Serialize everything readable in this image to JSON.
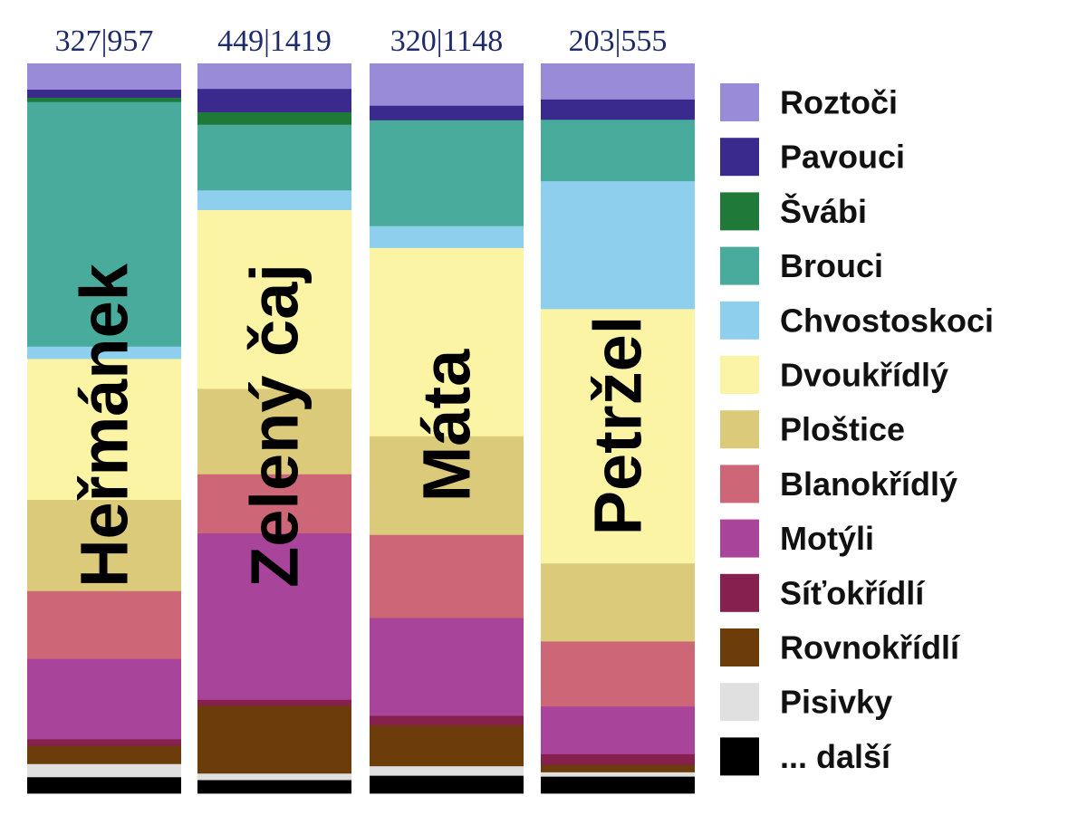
{
  "chart_data": {
    "type": "bar",
    "orientation": "vertical-stacked-100",
    "legend_placement": "right",
    "grid": false,
    "categories": [
      "Heřmánek",
      "Zelený čaj",
      "Máta",
      "Petržel"
    ],
    "count_labels": [
      "327|957",
      "449|1419",
      "320|1148",
      "203|555"
    ],
    "series": [
      {
        "name": "Roztoči",
        "color": "#9a8bd8",
        "values": [
          3.6,
          3.5,
          5.8,
          5.0
        ]
      },
      {
        "name": "Pavouci",
        "color": "#3a2a8e",
        "values": [
          1.1,
          3.2,
          2.0,
          2.8
        ]
      },
      {
        "name": "Švábi",
        "color": "#1f7a3a",
        "values": [
          0.6,
          1.7,
          0.0,
          0.0
        ]
      },
      {
        "name": "Brouci",
        "color": "#48ab9b",
        "values": [
          33.5,
          9.0,
          14.5,
          8.5
        ]
      },
      {
        "name": "Chvostoskoci",
        "color": "#8ecfee",
        "values": [
          1.7,
          2.7,
          3.0,
          17.7
        ]
      },
      {
        "name": "Dvoukřídlý",
        "color": "#faf4a4",
        "values": [
          19.3,
          24.5,
          25.8,
          35.2
        ]
      },
      {
        "name": "Ploštice",
        "color": "#dcca7b",
        "values": [
          12.5,
          11.7,
          13.5,
          10.8
        ]
      },
      {
        "name": "Blanokřídlý",
        "color": "#cd6677",
        "values": [
          9.3,
          8.1,
          11.4,
          9.0
        ]
      },
      {
        "name": "Motýli",
        "color": "#a9449b",
        "values": [
          11.0,
          22.8,
          13.4,
          6.6
        ]
      },
      {
        "name": "Síťokřídlí",
        "color": "#85204f",
        "values": [
          0.9,
          0.8,
          1.3,
          1.5
        ]
      },
      {
        "name": "Rovnokřídlí",
        "color": "#6c3c0b",
        "values": [
          2.5,
          9.3,
          5.6,
          1.0
        ]
      },
      {
        "name": "Pisivky",
        "color": "#e0e0e0",
        "values": [
          1.8,
          0.9,
          1.3,
          0.6
        ]
      },
      {
        "name": "... další",
        "color": "#000000",
        "values": [
          2.2,
          1.8,
          2.4,
          2.3
        ]
      }
    ]
  }
}
